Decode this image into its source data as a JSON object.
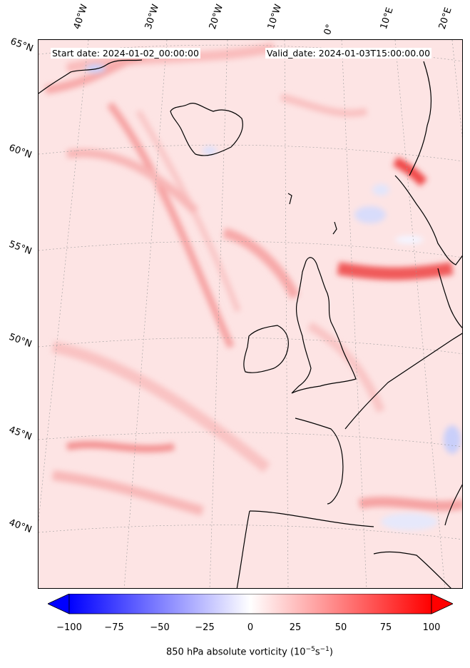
{
  "header": {
    "start_date": "Start date: 2024-01-02_00:00:00",
    "valid_date": "Valid_date: 2024-01-03T15:00:00.00"
  },
  "longitude_labels": [
    "40°W",
    "30°W",
    "20°W",
    "10°W",
    "0°",
    "10°E",
    "20°E"
  ],
  "latitude_labels": [
    "65°N",
    "60°N",
    "55°N",
    "50°N",
    "45°N",
    "40°N"
  ],
  "colorbar": {
    "ticks": [
      "−100",
      "−75",
      "−50",
      "−25",
      "0",
      "25",
      "50",
      "75",
      "100"
    ],
    "min": -100,
    "max": 100,
    "extend": "both",
    "title": "850 hPa absolute vorticity (10",
    "title_exp1": "−5",
    "title_mid": "s",
    "title_exp2": "−1",
    "title_end": ")",
    "colors": {
      "low": "#0000ff",
      "mid": "#ffffff",
      "high": "#ff0000"
    }
  },
  "map": {
    "background_color": "#fde2e2",
    "coastline_color": "#000000",
    "gridline_color": "#9a9a9a"
  }
}
